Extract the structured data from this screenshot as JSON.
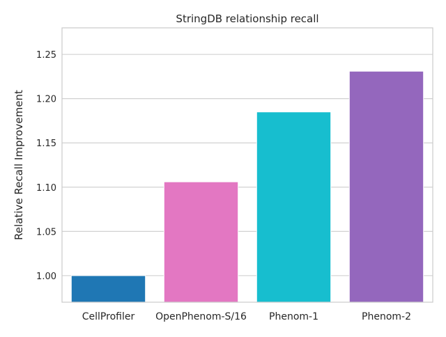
{
  "chart_data": {
    "type": "bar",
    "title": "StringDB relationship recall",
    "xlabel": "",
    "ylabel": "Relative Recall Improvement",
    "categories": [
      "CellProfiler",
      "OpenPhenom-S/16",
      "Phenom-1",
      "Phenom-2"
    ],
    "values": [
      1.0,
      1.106,
      1.185,
      1.231
    ],
    "colors": [
      "#1f77b4",
      "#e377c2",
      "#17becf",
      "#9467bd"
    ],
    "ylim": [
      0.97,
      1.28
    ],
    "yticks": [
      1.0,
      1.05,
      1.1,
      1.15,
      1.2,
      1.25
    ],
    "ytick_labels": [
      "1.00",
      "1.05",
      "1.10",
      "1.15",
      "1.20",
      "1.25"
    ],
    "grid": true,
    "grid_axis": "y"
  }
}
